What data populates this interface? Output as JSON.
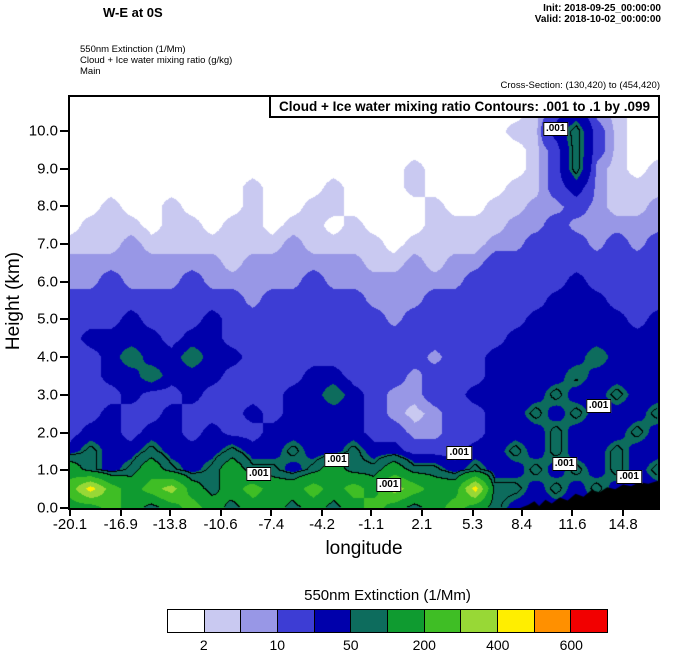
{
  "header": {
    "title": "W-E at 0S",
    "init": "Init: 2018-09-25_00:00:00",
    "valid": "Valid: 2018-10-02_00:00:00",
    "field_line1": "550nm Extinction  (1/Mm)",
    "field_line2": "Cloud + Ice water mixing ratio  (g/kg)",
    "field_line3": "Main",
    "cross_section": "Cross-Section: (130,420) to (454,420)"
  },
  "colorbar": {
    "title": "550nm Extinction  (1/Mm)",
    "tick_labels": [
      "2",
      "10",
      "50",
      "200",
      "400",
      "600"
    ],
    "labeled_boundaries": [
      1,
      3,
      5,
      7,
      9,
      11
    ]
  },
  "chart_data": {
    "type": "heatmap",
    "title": "Cloud + Ice water mixing ratio Contours: .001 to .1 by .099",
    "xlabel": "longitude",
    "ylabel": "Height (km)",
    "units": "1/Mm",
    "x_range": [
      -20.1,
      17.0
    ],
    "y_range": [
      0,
      10.9
    ],
    "x_tick_values": [
      -20.1,
      -16.9,
      -13.8,
      -10.6,
      -7.4,
      -4.2,
      -1.1,
      2.1,
      5.3,
      8.4,
      11.6,
      14.8
    ],
    "x_tick_labels": [
      "-20.1",
      "-16.9",
      "-13.8",
      "-10.6",
      "-7.4",
      "-4.2",
      "-1.1",
      "2.1",
      "5.3",
      "8.4",
      "11.6",
      "14.8"
    ],
    "y_tick_values": [
      0,
      1,
      2,
      3,
      4,
      5,
      6,
      7,
      8,
      9,
      10
    ],
    "y_tick_labels": [
      "0.0",
      "1.0",
      "2.0",
      "3.0",
      "4.0",
      "5.0",
      "6.0",
      "7.0",
      "8.0",
      "9.0",
      "10.0"
    ],
    "levels": [
      2,
      5,
      10,
      25,
      50,
      100,
      200,
      300,
      400,
      500,
      600
    ],
    "colors": [
      "#ffffff",
      "#c9c9f1",
      "#9897e6",
      "#3d3dd4",
      "#0000ab",
      "#0d6c5d",
      "#0f9b30",
      "#3fbe25",
      "#98d836",
      "#ffee00",
      "#ff9000",
      "#f20000"
    ],
    "contour_label_text": ".001",
    "contour_labels": [
      {
        "x_pct": 82.6,
        "y_pct": 7.7
      },
      {
        "x_pct": 89.9,
        "y_pct": 75.2
      },
      {
        "x_pct": 84.1,
        "y_pct": 89.4
      },
      {
        "x_pct": 95.1,
        "y_pct": 92.5
      },
      {
        "x_pct": 66.2,
        "y_pct": 86.7
      },
      {
        "x_pct": 45.4,
        "y_pct": 88.4
      },
      {
        "x_pct": 54.2,
        "y_pct": 94.5
      },
      {
        "x_pct": 32.1,
        "y_pct": 91.8
      }
    ],
    "terrain_profile": [
      [
        8.3,
        0.0
      ],
      [
        8.8,
        0.08
      ],
      [
        9.2,
        0.18
      ],
      [
        9.5,
        0.05
      ],
      [
        9.9,
        0.22
      ],
      [
        10.3,
        0.12
      ],
      [
        10.8,
        0.28
      ],
      [
        11.3,
        0.2
      ],
      [
        11.8,
        0.38
      ],
      [
        12.3,
        0.3
      ],
      [
        12.8,
        0.48
      ],
      [
        13.3,
        0.42
      ],
      [
        13.8,
        0.55
      ],
      [
        14.3,
        0.5
      ],
      [
        14.8,
        0.62
      ],
      [
        15.3,
        0.58
      ],
      [
        15.8,
        0.68
      ],
      [
        16.4,
        0.64
      ],
      [
        17.0,
        0.72
      ]
    ],
    "grid": {
      "km_step": 0.5,
      "lon_start": -20.1,
      "lon_end": 17.0,
      "rows_bottom_to_top": true,
      "values": [
        [
          150,
          150,
          250,
          150,
          70,
          150,
          250,
          150,
          70,
          150,
          150,
          70,
          150,
          70,
          150,
          250,
          150,
          70,
          150,
          250,
          150,
          70,
          35,
          35,
          35,
          35,
          35,
          35,
          35,
          35
        ],
        [
          250,
          450,
          250,
          150,
          250,
          350,
          150,
          70,
          150,
          250,
          150,
          150,
          250,
          150,
          250,
          150,
          350,
          250,
          150,
          150,
          450,
          70,
          70,
          35,
          70,
          35,
          70,
          35,
          35,
          35
        ],
        [
          150,
          70,
          35,
          70,
          150,
          70,
          35,
          70,
          150,
          70,
          70,
          35,
          70,
          150,
          70,
          70,
          150,
          70,
          70,
          35,
          70,
          35,
          35,
          70,
          35,
          70,
          35,
          70,
          35,
          70
        ],
        [
          35,
          70,
          35,
          35,
          70,
          35,
          35,
          35,
          70,
          35,
          35,
          70,
          35,
          35,
          70,
          35,
          35,
          15,
          15,
          15,
          35,
          35,
          70,
          35,
          70,
          35,
          35,
          70,
          35,
          35
        ],
        [
          15,
          35,
          35,
          15,
          35,
          35,
          15,
          35,
          15,
          15,
          35,
          35,
          35,
          35,
          35,
          15,
          15,
          7,
          7,
          15,
          15,
          35,
          35,
          35,
          70,
          35,
          35,
          35,
          70,
          35
        ],
        [
          15,
          15,
          35,
          15,
          15,
          35,
          15,
          15,
          15,
          35,
          15,
          35,
          35,
          35,
          35,
          15,
          7,
          3,
          7,
          15,
          15,
          35,
          35,
          70,
          35,
          70,
          35,
          35,
          35,
          70
        ],
        [
          15,
          15,
          15,
          35,
          15,
          15,
          35,
          15,
          15,
          15,
          15,
          35,
          35,
          70,
          35,
          15,
          7,
          7,
          15,
          15,
          35,
          35,
          35,
          35,
          70,
          35,
          35,
          70,
          35,
          35
        ],
        [
          15,
          15,
          35,
          35,
          70,
          35,
          35,
          35,
          15,
          15,
          15,
          15,
          35,
          35,
          15,
          15,
          15,
          7,
          15,
          15,
          15,
          35,
          35,
          35,
          35,
          70,
          35,
          35,
          35,
          35
        ],
        [
          15,
          15,
          35,
          70,
          35,
          35,
          70,
          35,
          35,
          15,
          15,
          15,
          15,
          15,
          15,
          15,
          15,
          15,
          7,
          15,
          15,
          35,
          35,
          35,
          35,
          35,
          70,
          35,
          35,
          35
        ],
        [
          15,
          35,
          35,
          35,
          35,
          15,
          35,
          35,
          15,
          15,
          15,
          15,
          15,
          15,
          15,
          15,
          15,
          15,
          15,
          15,
          15,
          15,
          35,
          35,
          35,
          35,
          35,
          35,
          35,
          35
        ],
        [
          15,
          15,
          15,
          35,
          15,
          15,
          15,
          35,
          15,
          15,
          15,
          15,
          15,
          15,
          15,
          15,
          7,
          15,
          15,
          15,
          15,
          15,
          15,
          35,
          35,
          35,
          35,
          35,
          15,
          35
        ],
        [
          15,
          15,
          15,
          15,
          15,
          15,
          15,
          15,
          15,
          7,
          15,
          15,
          15,
          15,
          15,
          7,
          7,
          7,
          15,
          15,
          15,
          15,
          15,
          15,
          35,
          35,
          35,
          15,
          15,
          15
        ],
        [
          7,
          7,
          15,
          7,
          7,
          7,
          15,
          7,
          7,
          7,
          7,
          7,
          15,
          7,
          7,
          7,
          7,
          7,
          7,
          7,
          15,
          15,
          15,
          15,
          15,
          35,
          15,
          15,
          15,
          15
        ],
        [
          7,
          7,
          7,
          7,
          7,
          7,
          7,
          7,
          3,
          7,
          7,
          7,
          7,
          7,
          7,
          3,
          3,
          7,
          3,
          7,
          7,
          15,
          15,
          15,
          15,
          15,
          15,
          15,
          15,
          15
        ],
        [
          3,
          3,
          3,
          7,
          3,
          3,
          3,
          3,
          3,
          3,
          3,
          7,
          3,
          3,
          3,
          3,
          1,
          3,
          3,
          3,
          3,
          7,
          7,
          15,
          15,
          15,
          7,
          15,
          7,
          15
        ],
        [
          1,
          3,
          3,
          3,
          1,
          3,
          3,
          1,
          3,
          3,
          1,
          3,
          3,
          1,
          3,
          1,
          1,
          1,
          3,
          3,
          3,
          3,
          7,
          7,
          15,
          7,
          7,
          7,
          7,
          7
        ],
        [
          1,
          1,
          3,
          1,
          1,
          3,
          1,
          1,
          1,
          3,
          1,
          1,
          3,
          3,
          1,
          1,
          1,
          1,
          3,
          1,
          1,
          3,
          3,
          7,
          7,
          15,
          7,
          3,
          3,
          7
        ],
        [
          1,
          1,
          1,
          1,
          1,
          1,
          1,
          1,
          1,
          3,
          1,
          1,
          1,
          3,
          1,
          1,
          1,
          3,
          1,
          1,
          1,
          1,
          3,
          3,
          15,
          35,
          7,
          3,
          3,
          3
        ],
        [
          1,
          1,
          1,
          1,
          1,
          1,
          1,
          1,
          1,
          1,
          1,
          1,
          1,
          1,
          1,
          1,
          1,
          3,
          1,
          1,
          1,
          1,
          1,
          3,
          15,
          70,
          7,
          3,
          1,
          3
        ],
        [
          1,
          1,
          1,
          1,
          1,
          1,
          1,
          1,
          1,
          1,
          1,
          1,
          1,
          1,
          1,
          1,
          1,
          1,
          1,
          1,
          1,
          1,
          1,
          3,
          15,
          70,
          15,
          3,
          1,
          1
        ],
        [
          1,
          1,
          1,
          1,
          1,
          1,
          1,
          1,
          1,
          1,
          1,
          1,
          1,
          1,
          1,
          1,
          1,
          1,
          1,
          1,
          1,
          1,
          3,
          3,
          35,
          70,
          15,
          3,
          1,
          1
        ],
        [
          1,
          1,
          1,
          1,
          1,
          1,
          1,
          1,
          1,
          1,
          1,
          1,
          1,
          1,
          1,
          1,
          1,
          1,
          1,
          1,
          1,
          1,
          1,
          3,
          15,
          35,
          7,
          3,
          1,
          1
        ],
        [
          1,
          1,
          1,
          1,
          1,
          1,
          1,
          1,
          1,
          1,
          1,
          1,
          1,
          1,
          1,
          1,
          1,
          1,
          1,
          1,
          1,
          1,
          1,
          1,
          7,
          15,
          3,
          1,
          1,
          1
        ]
      ]
    }
  }
}
